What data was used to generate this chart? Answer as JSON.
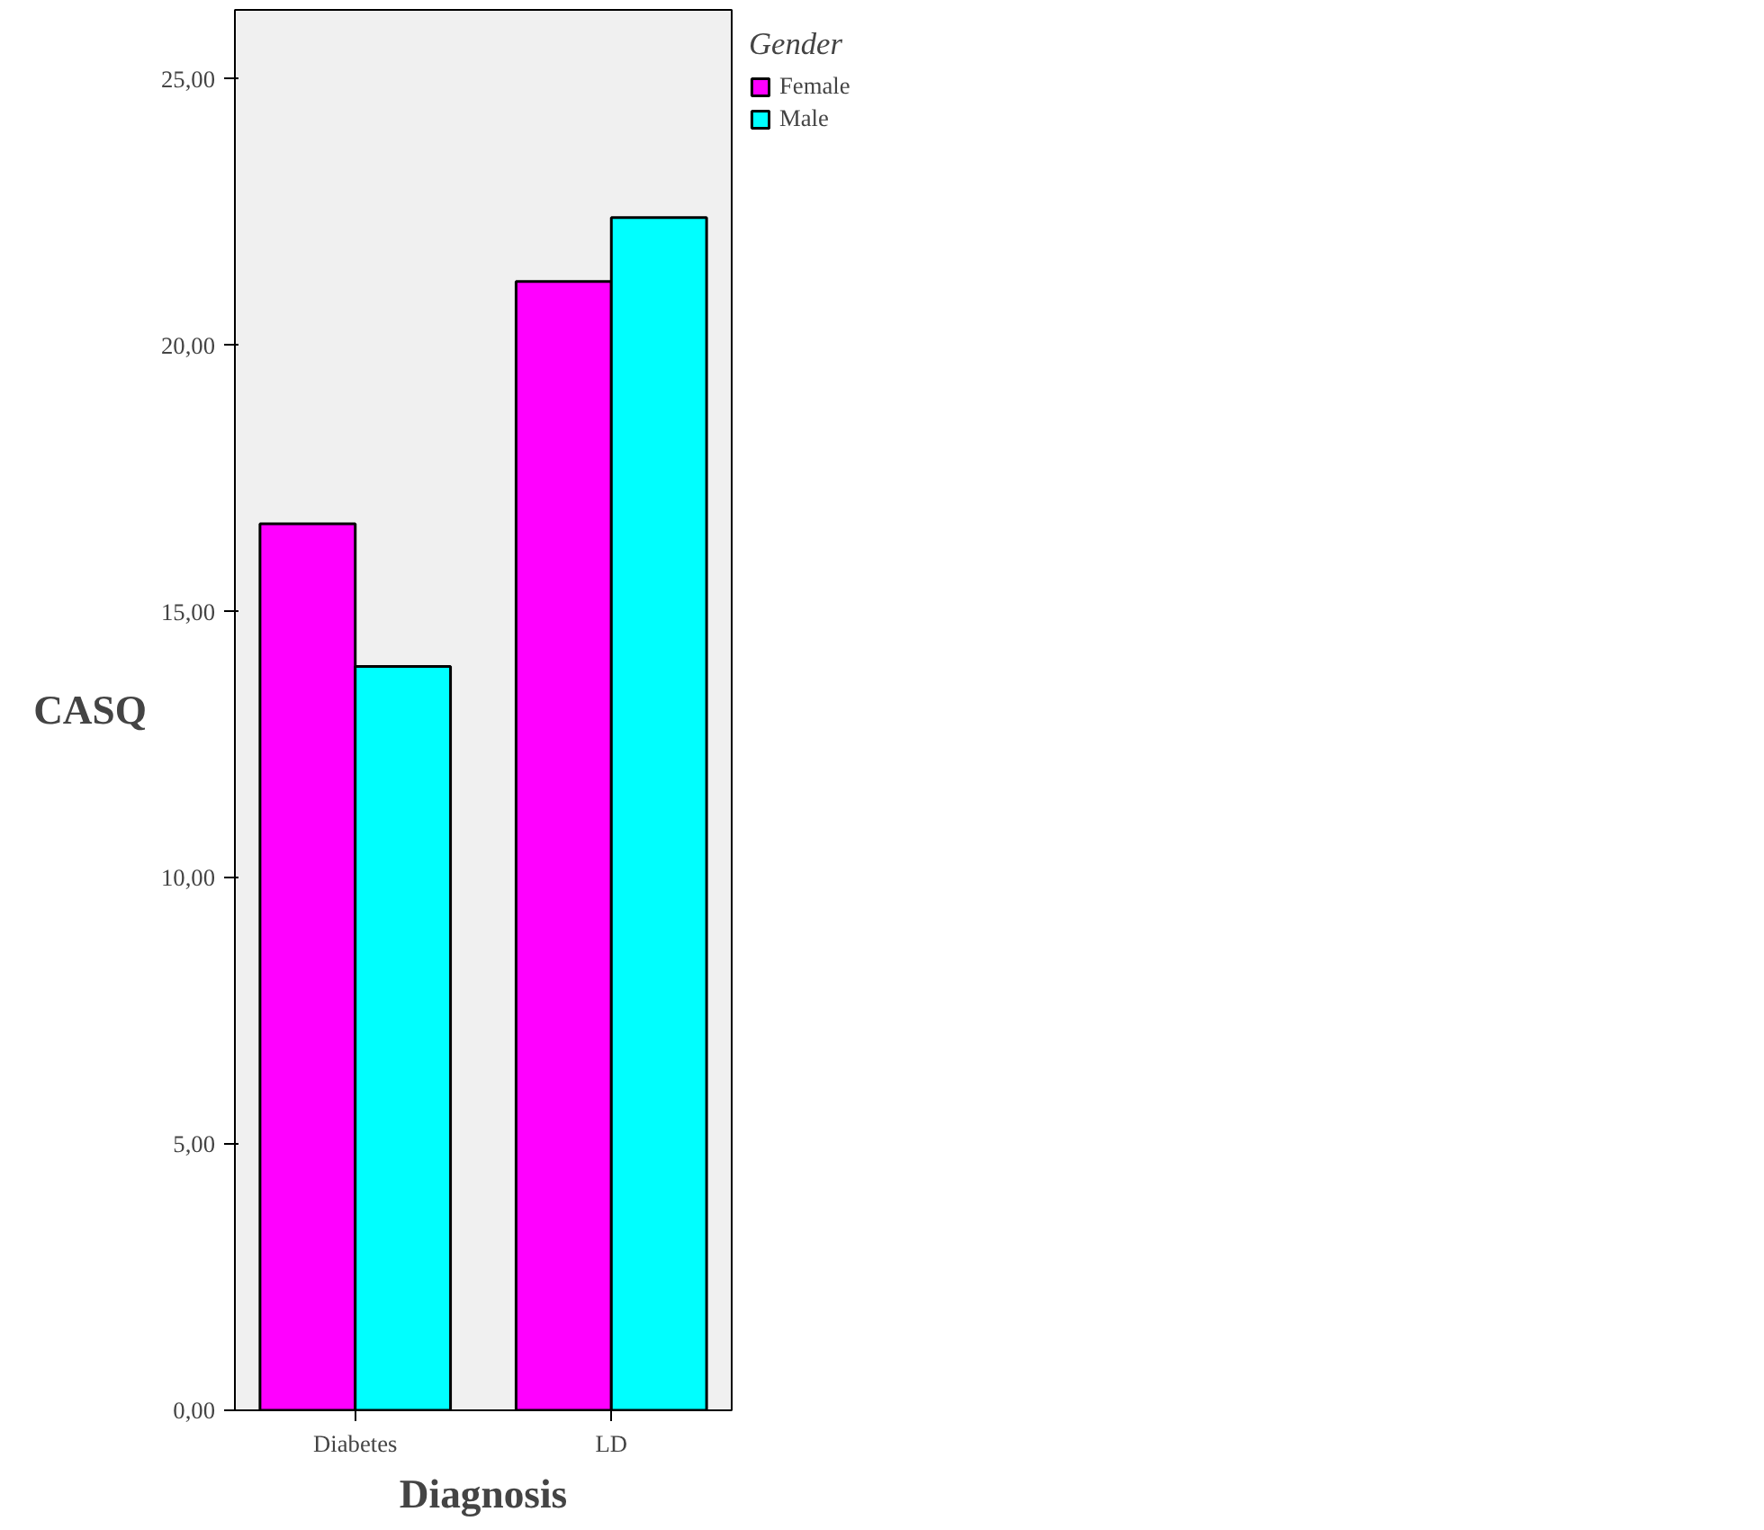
{
  "chart_data": {
    "type": "bar",
    "xlabel": "Diagnosis",
    "ylabel": "CASQ",
    "legend_title": "Gender",
    "categories": [
      "Diabetes",
      "LD"
    ],
    "series": [
      {
        "name": "Female",
        "color": "#ff00ff",
        "values": [
          16.65,
          21.2
        ]
      },
      {
        "name": "Male",
        "color": "#00ffff",
        "values": [
          13.97,
          22.4
        ]
      }
    ],
    "ylim": [
      0,
      26.3
    ],
    "yticks": [
      {
        "value": 0,
        "label": "0,00"
      },
      {
        "value": 5,
        "label": "5,00"
      },
      {
        "value": 10,
        "label": "10,00"
      },
      {
        "value": 15,
        "label": "15,00"
      },
      {
        "value": 20,
        "label": "20,00"
      },
      {
        "value": 25,
        "label": "25,00"
      }
    ],
    "grid": false,
    "legend": "top right"
  }
}
